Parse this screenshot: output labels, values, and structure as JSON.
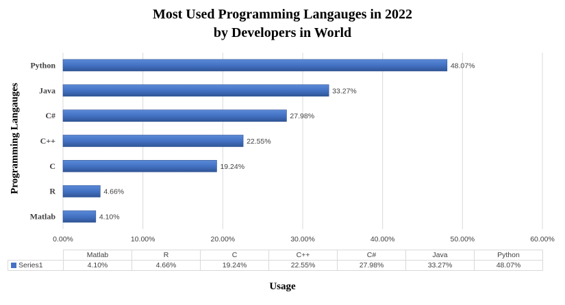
{
  "title_line_1": "Most Used Programming Langauges in 2022",
  "title_line_2": "by Developers in World",
  "chart_data": {
    "type": "bar",
    "orientation": "horizontal",
    "categories": [
      "Matlab",
      "R",
      "C",
      "C++",
      "C#",
      "Java",
      "Python"
    ],
    "series": [
      {
        "name": "Series1",
        "values": [
          4.1,
          4.66,
          19.24,
          22.55,
          27.98,
          33.27,
          48.07
        ],
        "labels": [
          "4.10%",
          "4.66%",
          "19.24%",
          "22.55%",
          "27.98%",
          "33.27%",
          "48.07%"
        ]
      }
    ],
    "xlabel": "Usage",
    "ylabel": "Programming Langauges",
    "xlim": [
      0,
      60
    ],
    "xticks": [
      "0.00%",
      "10.00%",
      "20.00%",
      "30.00%",
      "40.00%",
      "50.00%",
      "60.00%"
    ],
    "grid": "vertical",
    "legend": "none",
    "data_table": true,
    "bar_color": "#4472c4"
  }
}
